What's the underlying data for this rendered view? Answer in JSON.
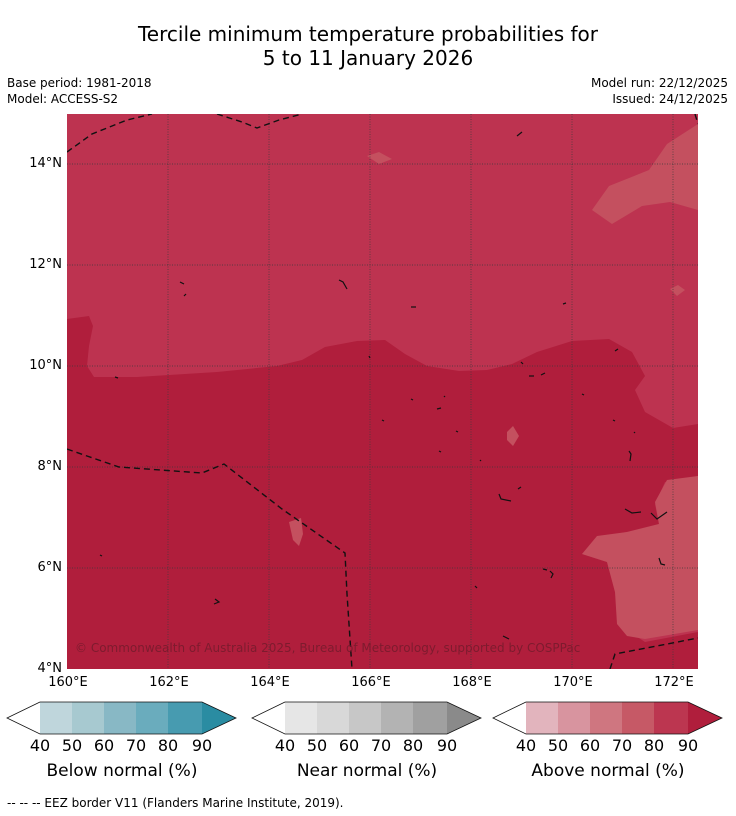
{
  "title": {
    "line1": "Tercile minimum temperature probabilities for",
    "line2": "5 to 11 January 2026"
  },
  "meta": {
    "base_period": "Base period: 1981-2018",
    "model": "Model: ACCESS-S2",
    "model_run": "Model run: 22/12/2025",
    "issued": "Issued: 24/12/2025"
  },
  "map": {
    "lat_labels": [
      "14°N",
      "12°N",
      "10°N",
      "8°N",
      "6°N",
      "4°N"
    ],
    "lon_labels": [
      "160°E",
      "162°E",
      "164°E",
      "166°E",
      "168°E",
      "170°E",
      "172°E"
    ],
    "credit": "© Commonwealth of Australia 2025, Bureau of Meteorology, supported by COSPPac",
    "colors": {
      "above_80": "#bd3350",
      "above_90": "#b01e3c",
      "above_70": "#c4505f",
      "eez_line": "#111111",
      "grid": "#3a3a3a"
    }
  },
  "colorbars": {
    "tick_labels": [
      "40",
      "50",
      "60",
      "70",
      "80",
      "90"
    ],
    "below": {
      "label": "Below normal (%)",
      "colors": [
        "#ffffff",
        "#bfd6dc",
        "#a7c9d0",
        "#88b8c5",
        "#6aacbd",
        "#479bb0",
        "#2a8ca2"
      ]
    },
    "near": {
      "label": "Near normal (%)",
      "colors": [
        "#ffffff",
        "#e6e6e6",
        "#d8d8d8",
        "#c7c7c7",
        "#b3b3b3",
        "#a0a0a0",
        "#8a8a8a"
      ]
    },
    "above": {
      "label": "Above normal (%)",
      "colors": [
        "#ffffff",
        "#e2b4bd",
        "#d8949f",
        "#cf7680",
        "#c65966",
        "#bc3650",
        "#b01e3c"
      ]
    }
  },
  "footer": "--  --  -- EEZ border V11 (Flanders Marine Institute, 2019)."
}
